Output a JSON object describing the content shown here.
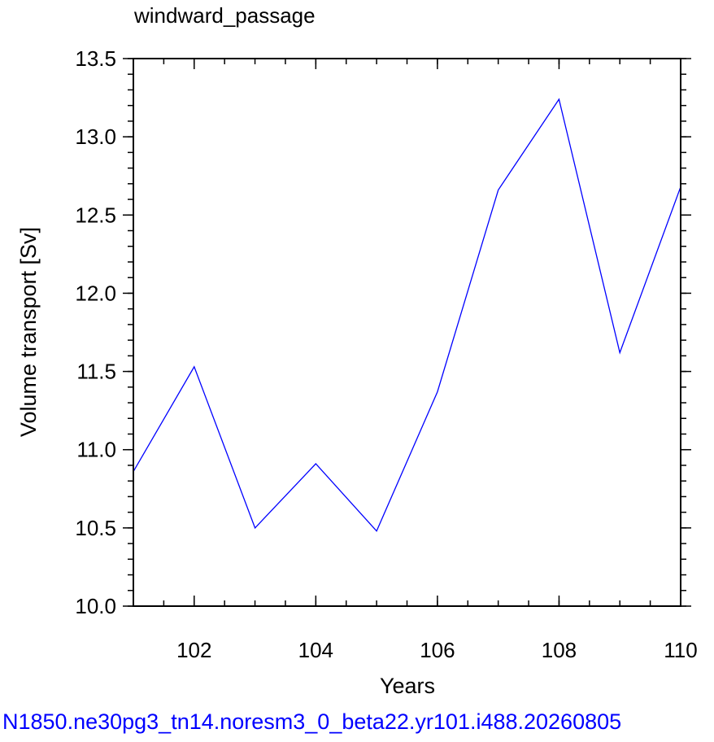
{
  "chart_data": {
    "type": "line",
    "title": "windward_passage",
    "xlabel": "Years",
    "ylabel": "Volume transport [Sv]",
    "xlim": [
      101,
      110
    ],
    "ylim": [
      10.0,
      13.5
    ],
    "x_major_ticks": [
      102,
      104,
      106,
      108,
      110
    ],
    "x_minor_step": 0.5,
    "y_major_ticks": [
      "10.0",
      "10.5",
      "11.0",
      "11.5",
      "12.0",
      "12.5",
      "13.0",
      "13.5"
    ],
    "y_minor_step": 0.1,
    "grid": false,
    "series": [
      {
        "color": "#0000ff",
        "x": [
          101,
          102,
          103,
          104,
          105,
          106,
          107,
          108,
          109,
          110
        ],
        "y": [
          10.86,
          11.53,
          10.5,
          10.91,
          10.48,
          11.37,
          12.66,
          13.24,
          11.62,
          12.68
        ]
      }
    ]
  },
  "footer": "N1850.ne30pg3_tn14.noresm3_0_beta22.yr101.i488.20260805"
}
